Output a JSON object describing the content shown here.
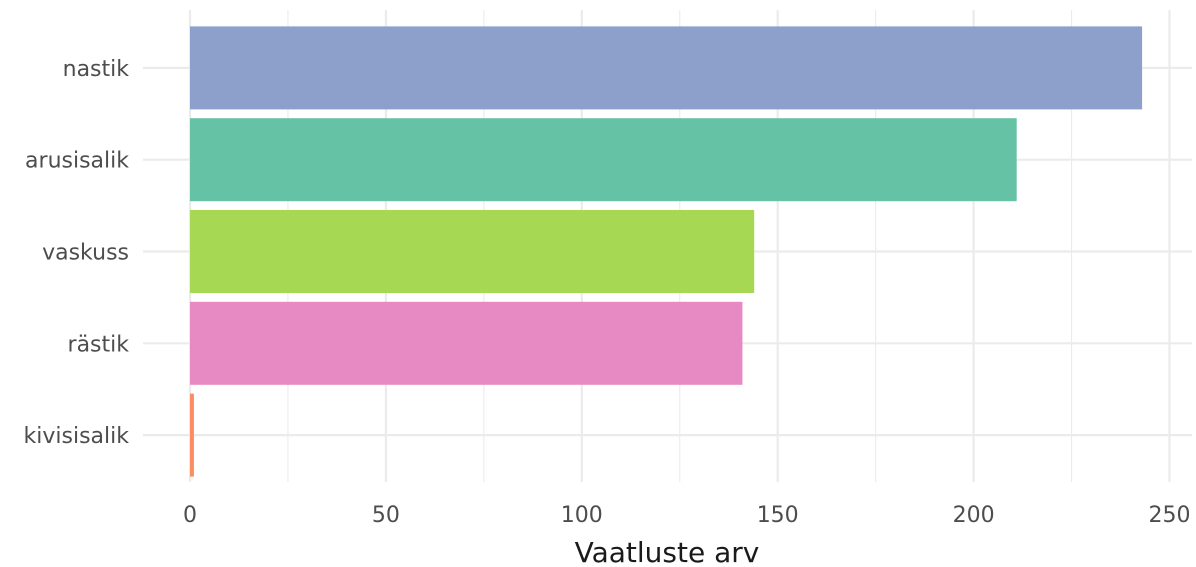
{
  "chart_data": {
    "type": "bar",
    "orientation": "horizontal",
    "categories": [
      "nastik",
      "arusisalik",
      "vaskuss",
      "rästik",
      "kivisisalik"
    ],
    "values": [
      243,
      211,
      144,
      141,
      1
    ],
    "colors": [
      "#8DA0CB",
      "#66C2A5",
      "#A6D854",
      "#E78AC3",
      "#FC8D62"
    ],
    "title": "",
    "xlabel": "Vaatluste arv",
    "ylabel": "",
    "xlim": [
      0,
      255
    ],
    "xticks": [
      0,
      50,
      100,
      150,
      200,
      250
    ],
    "xtick_labels": [
      "0",
      "50",
      "100",
      "150",
      "200",
      "250"
    ],
    "grid": true,
    "legend": "none",
    "background": "#ffffff"
  }
}
